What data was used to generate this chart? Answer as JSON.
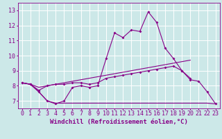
{
  "x": [
    0,
    1,
    2,
    3,
    4,
    5,
    6,
    7,
    8,
    9,
    10,
    11,
    12,
    13,
    14,
    15,
    16,
    17,
    18,
    19,
    20,
    21,
    22,
    23
  ],
  "line1": [
    8.2,
    8.1,
    7.6,
    7.0,
    6.8,
    7.0,
    7.9,
    8.0,
    7.9,
    8.0,
    9.8,
    11.5,
    11.2,
    11.7,
    11.6,
    12.9,
    12.2,
    10.5,
    9.8,
    9.0,
    8.4,
    8.3,
    7.6,
    6.8
  ],
  "line2": [
    8.2,
    8.1,
    7.7,
    8.0,
    8.1,
    8.1,
    8.2,
    8.2,
    8.1,
    8.2,
    8.5,
    8.6,
    8.7,
    8.8,
    8.9,
    9.0,
    9.1,
    9.2,
    9.3,
    9.0,
    8.5,
    null,
    null,
    null
  ],
  "line3": [
    8.2,
    8.1,
    7.9,
    8.0,
    8.1,
    8.2,
    8.3,
    8.4,
    8.5,
    8.6,
    8.7,
    8.8,
    8.9,
    9.0,
    9.1,
    9.2,
    9.3,
    9.4,
    9.5,
    9.6,
    9.7,
    null,
    null,
    null
  ],
  "line_flat": [
    8.2,
    8.1,
    7.6,
    7.0,
    6.85,
    6.85,
    6.85,
    6.85,
    6.85,
    6.85,
    6.85,
    6.85,
    6.85,
    6.85,
    6.85,
    6.85,
    6.85,
    6.85,
    6.85,
    6.85,
    6.85,
    6.85,
    6.85,
    6.8
  ],
  "color": "#880088",
  "bg_color": "#cce8e8",
  "grid_color": "#ffffff",
  "xlabel": "Windchill (Refroidissement éolien,°C)",
  "ylabel_ticks": [
    7,
    8,
    9,
    10,
    11,
    12,
    13
  ],
  "xlim": [
    -0.5,
    23.5
  ],
  "ylim": [
    6.5,
    13.5
  ],
  "xlabel_fontsize": 6.5,
  "tick_fontsize": 6
}
